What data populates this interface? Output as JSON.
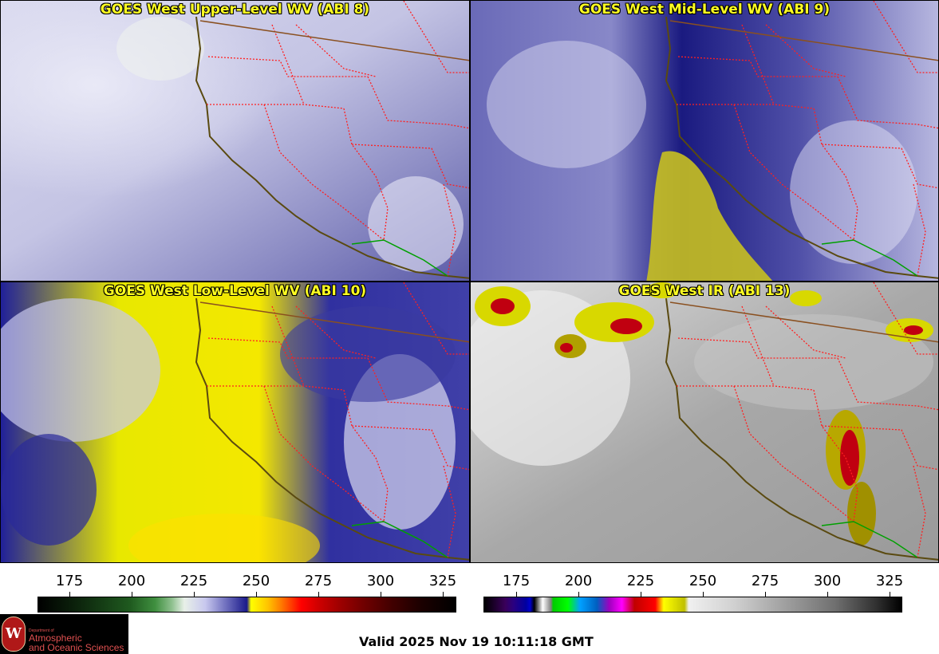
{
  "panels": [
    {
      "title": "GOES West Upper-Level WV (ABI 8)",
      "icon": "satellite-imagery"
    },
    {
      "title": "GOES West Mid-Level WV (ABI 9)",
      "icon": "satellite-imagery"
    },
    {
      "title": "GOES West Low-Level WV (ABI 10)",
      "icon": "satellite-imagery"
    },
    {
      "title": "GOES West IR (ABI 13)",
      "icon": "satellite-imagery"
    }
  ],
  "colorbar_wv": {
    "ticks": [
      "175",
      "200",
      "225",
      "250",
      "275",
      "300",
      "325"
    ]
  },
  "colorbar_ir": {
    "ticks": [
      "175",
      "200",
      "225",
      "250",
      "275",
      "300",
      "325"
    ]
  },
  "logo": {
    "line1": "Department of",
    "line2": "Atmospheric",
    "line3": "and Oceanic Sciences",
    "seal_letter": "W",
    "colors": {
      "background": "#000000",
      "text": "#e05050"
    }
  },
  "footer": {
    "valid_time": "Valid 2025 Nov 19 10:11:18 GMT"
  },
  "colors": {
    "title_text": "#ffff22",
    "state_borders": "#ff2020",
    "coastline": "#5a4a10",
    "mexico_border": "#00a000"
  }
}
